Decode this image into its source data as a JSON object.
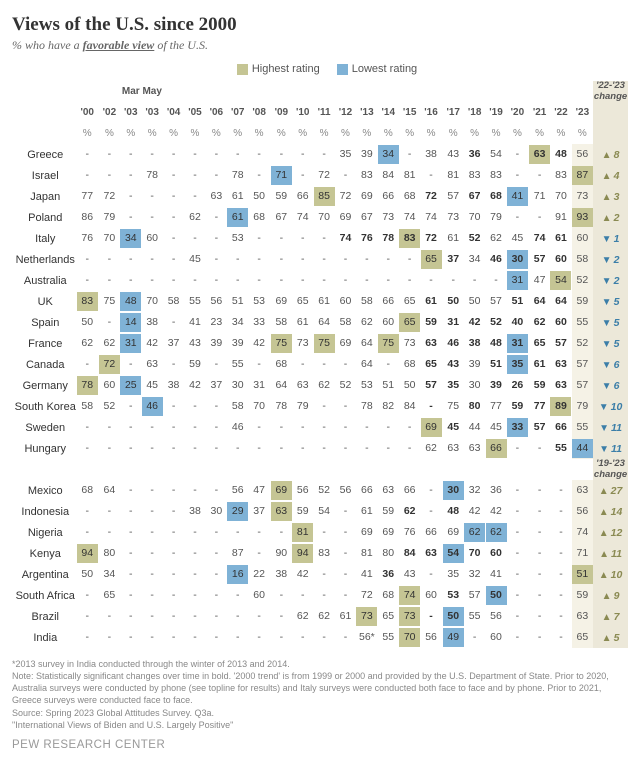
{
  "title": "Views of the U.S. since 2000",
  "subtitle_prefix": "% who have a ",
  "subtitle_em": "favorable view",
  "subtitle_suffix": " of the U.S.",
  "legend": {
    "hi_label": "Highest rating",
    "lo_label": "Lowest rating",
    "hi_color": "#c5c594",
    "lo_color": "#7fb2d6"
  },
  "colors": {
    "change_bg": "#ece8d9",
    "last_col_bg": "#f5f2e6",
    "up": "#8a8a52",
    "down": "#3b7ea8"
  },
  "years": [
    "'00",
    "'02",
    "Mar '03",
    "May '03",
    "'04",
    "'05",
    "'06",
    "'07",
    "'08",
    "'09",
    "'10",
    "'11",
    "'12",
    "'13",
    "'14",
    "'15",
    "'16",
    "'17",
    "'18",
    "'19",
    "'20",
    "'21",
    "'22",
    "'23"
  ],
  "gaps_after": [
    0,
    8,
    16,
    20
  ],
  "change_headers": [
    "'22-'23 change",
    "'19-'23 change"
  ],
  "blocks": [
    {
      "change_header_index": 0,
      "rows": [
        {
          "c": "Greece",
          "v": [
            "-",
            "-",
            "-",
            "-",
            "-",
            "-",
            "-",
            "-",
            "-",
            "-",
            "-",
            "-",
            "35",
            "39",
            "34",
            "-",
            "38",
            "43",
            "36",
            "54",
            "-",
            "63",
            "48",
            "56"
          ],
          "hi": [
            21
          ],
          "lo": [
            14
          ],
          "chg": 8,
          "dir": "up"
        },
        {
          "c": "Israel",
          "v": [
            "-",
            "-",
            "-",
            "78",
            "-",
            "-",
            "-",
            "78",
            "-",
            "71",
            "-",
            "72",
            "-",
            "83",
            "84",
            "81",
            "-",
            "81",
            "83",
            "83",
            "-",
            "-",
            "83",
            "87"
          ],
          "hi": [
            23
          ],
          "lo": [
            9
          ],
          "chg": 4,
          "dir": "up"
        },
        {
          "c": "Japan",
          "v": [
            "77",
            "72",
            "-",
            "-",
            "-",
            "-",
            "63",
            "61",
            "50",
            "59",
            "66",
            "85",
            "72",
            "69",
            "66",
            "68",
            "72",
            "57",
            "67",
            "68",
            "41",
            "71",
            "70",
            "73"
          ],
          "hi": [
            11
          ],
          "lo": [
            20
          ],
          "chg": 3,
          "dir": "up"
        },
        {
          "c": "Poland",
          "v": [
            "86",
            "79",
            "-",
            "-",
            "-",
            "62",
            "-",
            "61",
            "68",
            "67",
            "74",
            "70",
            "69",
            "67",
            "73",
            "74",
            "74",
            "73",
            "70",
            "79",
            "-",
            "-",
            "91",
            "93"
          ],
          "hi": [
            23
          ],
          "lo": [
            7
          ],
          "chg": 2,
          "dir": "up"
        },
        {
          "c": "Italy",
          "v": [
            "76",
            "70",
            "34",
            "60",
            "-",
            "-",
            "-",
            "53",
            "-",
            "-",
            "-",
            "-",
            "74",
            "76",
            "78",
            "83",
            "72",
            "61",
            "52",
            "62",
            "45",
            "74",
            "61",
            "60"
          ],
          "hi": [
            15
          ],
          "lo": [
            2
          ],
          "chg": 1,
          "dir": "down"
        },
        {
          "c": "Netherlands",
          "v": [
            "-",
            "-",
            "-",
            "-",
            "-",
            "45",
            "-",
            "-",
            "-",
            "-",
            "-",
            "-",
            "-",
            "-",
            "-",
            "-",
            "65",
            "37",
            "34",
            "46",
            "30",
            "57",
            "60",
            "58"
          ],
          "hi": [
            16
          ],
          "lo": [
            20
          ],
          "chg": 2,
          "dir": "down"
        },
        {
          "c": "Australia",
          "v": [
            "-",
            "-",
            "-",
            "-",
            "-",
            "-",
            "-",
            "-",
            "-",
            "-",
            "-",
            "-",
            "-",
            "-",
            "-",
            "-",
            "-",
            "-",
            "-",
            "-",
            "31",
            "47",
            "54",
            "52"
          ],
          "hi": [
            22
          ],
          "lo": [
            20
          ],
          "chg": 2,
          "dir": "down"
        },
        {
          "c": "UK",
          "v": [
            "83",
            "75",
            "48",
            "70",
            "58",
            "55",
            "56",
            "51",
            "53",
            "69",
            "65",
            "61",
            "60",
            "58",
            "66",
            "65",
            "61",
            "50",
            "50",
            "57",
            "51",
            "64",
            "64",
            "59"
          ],
          "hi": [
            0
          ],
          "lo": [
            2
          ],
          "chg": 5,
          "dir": "down"
        },
        {
          "c": "Spain",
          "v": [
            "50",
            "-",
            "14",
            "38",
            "-",
            "41",
            "23",
            "34",
            "33",
            "58",
            "61",
            "64",
            "58",
            "62",
            "60",
            "65",
            "59",
            "31",
            "42",
            "52",
            "40",
            "62",
            "60",
            "55"
          ],
          "hi": [
            15
          ],
          "lo": [
            2
          ],
          "chg": 5,
          "dir": "down"
        },
        {
          "c": "France",
          "v": [
            "62",
            "62",
            "31",
            "42",
            "37",
            "43",
            "39",
            "39",
            "42",
            "75",
            "73",
            "75",
            "69",
            "64",
            "75",
            "73",
            "63",
            "46",
            "38",
            "48",
            "31",
            "65",
            "57",
            "52"
          ],
          "hi": [
            9,
            11,
            14
          ],
          "lo": [
            2,
            20
          ],
          "chg": 5,
          "dir": "down"
        },
        {
          "c": "Canada",
          "v": [
            "-",
            "72",
            "-",
            "63",
            "-",
            "59",
            "-",
            "55",
            "-",
            "68",
            "-",
            "-",
            "-",
            "64",
            "-",
            "68",
            "65",
            "43",
            "39",
            "51",
            "35",
            "61",
            "63",
            "57"
          ],
          "hi": [
            1
          ],
          "lo": [
            20
          ],
          "chg": 6,
          "dir": "down"
        },
        {
          "c": "Germany",
          "v": [
            "78",
            "60",
            "25",
            "45",
            "38",
            "42",
            "37",
            "30",
            "31",
            "64",
            "63",
            "62",
            "52",
            "53",
            "51",
            "50",
            "57",
            "35",
            "30",
            "39",
            "26",
            "59",
            "63",
            "57"
          ],
          "hi": [
            0
          ],
          "lo": [
            2
          ],
          "chg": 6,
          "dir": "down"
        },
        {
          "c": "South Korea",
          "v": [
            "58",
            "52",
            "-",
            "46",
            "-",
            "-",
            "-",
            "58",
            "70",
            "78",
            "79",
            "-",
            "-",
            "78",
            "82",
            "84",
            "-",
            "75",
            "80",
            "77",
            "59",
            "77",
            "89",
            "79"
          ],
          "hi": [
            22
          ],
          "lo": [
            3
          ],
          "chg": 10,
          "dir": "down"
        },
        {
          "c": "Sweden",
          "v": [
            "-",
            "-",
            "-",
            "-",
            "-",
            "-",
            "-",
            "46",
            "-",
            "-",
            "-",
            "-",
            "-",
            "-",
            "-",
            "-",
            "69",
            "45",
            "44",
            "45",
            "33",
            "57",
            "66",
            "55"
          ],
          "hi": [
            16
          ],
          "lo": [
            20
          ],
          "chg": 11,
          "dir": "down"
        },
        {
          "c": "Hungary",
          "v": [
            "-",
            "-",
            "-",
            "-",
            "-",
            "-",
            "-",
            "-",
            "-",
            "-",
            "-",
            "-",
            "-",
            "-",
            "-",
            "-",
            "62",
            "63",
            "63",
            "66",
            "-",
            "-",
            "55",
            "44"
          ],
          "hi": [
            19
          ],
          "lo": [
            23
          ],
          "chg": 11,
          "dir": "down"
        }
      ]
    },
    {
      "change_header_index": 1,
      "rows": [
        {
          "c": "Mexico",
          "v": [
            "68",
            "64",
            "-",
            "-",
            "-",
            "-",
            "-",
            "56",
            "47",
            "69",
            "56",
            "52",
            "56",
            "66",
            "63",
            "66",
            "-",
            "30",
            "32",
            "36",
            "-",
            "-",
            "-",
            "63"
          ],
          "hi": [
            9
          ],
          "lo": [
            17
          ],
          "chg": 27,
          "dir": "up"
        },
        {
          "c": "Indonesia",
          "v": [
            "-",
            "-",
            "-",
            "-",
            "-",
            "38",
            "30",
            "29",
            "37",
            "63",
            "59",
            "54",
            "-",
            "61",
            "59",
            "62",
            "-",
            "48",
            "42",
            "42",
            "-",
            "-",
            "-",
            "56"
          ],
          "hi": [
            9
          ],
          "lo": [
            7
          ],
          "chg": 14,
          "dir": "up"
        },
        {
          "c": "Nigeria",
          "v": [
            "-",
            "-",
            "-",
            "-",
            "-",
            "-",
            "-",
            "-",
            "-",
            "-",
            "81",
            "-",
            "-",
            "69",
            "69",
            "76",
            "66",
            "69",
            "62",
            "62",
            "-",
            "-",
            "-",
            "74"
          ],
          "hi": [
            10
          ],
          "lo": [
            18,
            19
          ],
          "chg": 12,
          "dir": "up"
        },
        {
          "c": "Kenya",
          "v": [
            "94",
            "80",
            "-",
            "-",
            "-",
            "-",
            "-",
            "87",
            "-",
            "90",
            "94",
            "83",
            "-",
            "81",
            "80",
            "84",
            "63",
            "54",
            "70",
            "60",
            "-",
            "-",
            "-",
            "71"
          ],
          "hi": [
            0,
            10
          ],
          "lo": [
            17
          ],
          "chg": 11,
          "dir": "up"
        },
        {
          "c": "Argentina",
          "v": [
            "50",
            "34",
            "-",
            "-",
            "-",
            "-",
            "-",
            "16",
            "22",
            "38",
            "42",
            "-",
            "-",
            "41",
            "36",
            "43",
            "-",
            "35",
            "32",
            "41",
            "-",
            "-",
            "-",
            "51"
          ],
          "hi": [
            23
          ],
          "lo": [
            7
          ],
          "chg": 10,
          "dir": "up"
        },
        {
          "c": "South Africa",
          "v": [
            "-",
            "65",
            "-",
            "-",
            "-",
            "-",
            "-",
            "-",
            "60",
            "-",
            "-",
            "-",
            "-",
            "72",
            "68",
            "74",
            "60",
            "53",
            "57",
            "50",
            "-",
            "-",
            "-",
            "59"
          ],
          "hi": [
            15
          ],
          "lo": [
            19
          ],
          "chg": 9,
          "dir": "up"
        },
        {
          "c": "Brazil",
          "v": [
            "-",
            "-",
            "-",
            "-",
            "-",
            "-",
            "-",
            "-",
            "-",
            "-",
            "62",
            "62",
            "61",
            "73",
            "65",
            "73",
            "-",
            "50",
            "55",
            "56",
            "-",
            "-",
            "-",
            "63"
          ],
          "hi": [
            13,
            15
          ],
          "lo": [
            17
          ],
          "chg": 7,
          "dir": "up"
        },
        {
          "c": "India",
          "v": [
            "-",
            "-",
            "-",
            "-",
            "-",
            "-",
            "-",
            "-",
            "-",
            "-",
            "-",
            "-",
            "-",
            "56*",
            "55",
            "70",
            "56",
            "49",
            "-",
            "60",
            "-",
            "-",
            "-",
            "65"
          ],
          "hi": [
            15
          ],
          "lo": [
            17
          ],
          "chg": 5,
          "dir": "up"
        }
      ]
    }
  ],
  "bold_cells": {
    "Japan": [
      16,
      18,
      19
    ],
    "Italy": [
      12,
      13,
      14,
      15,
      16,
      18,
      21,
      22
    ],
    "Netherlands": [
      17,
      19,
      20,
      21,
      22
    ],
    "UK": [
      16,
      17,
      20,
      21,
      22
    ],
    "Spain": [
      16,
      17,
      18,
      19,
      20,
      21,
      22
    ],
    "France": [
      16,
      17,
      18,
      19,
      20,
      21,
      22
    ],
    "Canada": [
      16,
      17,
      19,
      20,
      21,
      22
    ],
    "Germany": [
      16,
      17,
      19,
      20,
      21,
      22
    ],
    "South Korea": [
      16,
      18,
      20,
      21,
      22
    ],
    "Sweden": [
      17,
      20,
      21,
      22
    ],
    "Hungary": [
      22
    ],
    "Greece": [
      18,
      21,
      22
    ],
    "Mexico": [
      17
    ],
    "Indonesia": [
      15,
      17
    ],
    "Kenya": [
      15,
      16,
      17,
      18,
      19
    ],
    "Argentina": [
      14
    ],
    "South Africa": [
      17,
      19
    ],
    "Brazil": [
      16,
      17
    ]
  },
  "notes": [
    "*2013 survey in India conducted through the winter of 2013 and 2014.",
    "Note: Statistically significant changes over time in bold. '2000 trend' is from 1999 or 2000 and provided by the U.S. Department of State. Prior to 2020, Australia surveys were conducted by phone (see topline for results) and Italy surveys were conducted both face to face and by phone. Prior to 2021, Greece surveys were conducted face to face.",
    "Source: Spring 2023 Global Attitudes Survey. Q3a.",
    "\"International Views of Biden and U.S. Largely Positive\""
  ],
  "footer": "PEW RESEARCH CENTER"
}
